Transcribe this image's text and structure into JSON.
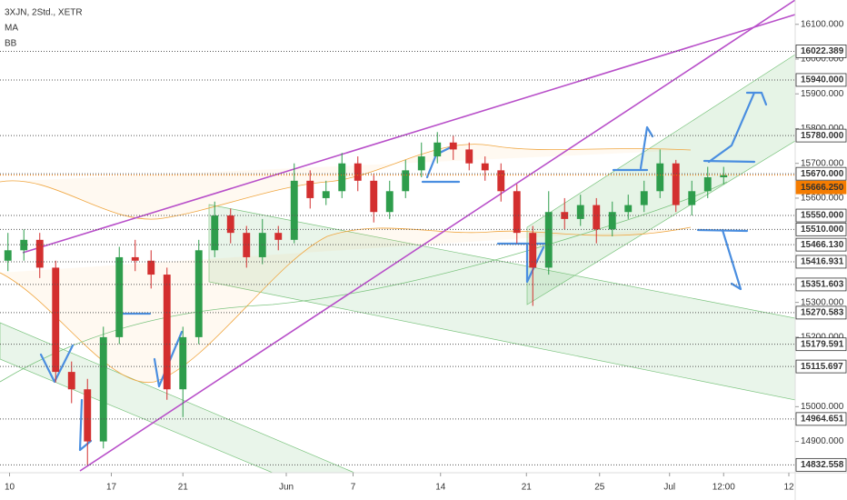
{
  "chart_data": {
    "type": "candlestick",
    "legend_lines": [
      "3XJN, 2Std., XETR",
      "MA",
      "BB"
    ],
    "up_color": "#2e9d4c",
    "down_color": "#d32f2f",
    "ylim": [
      14810,
      16170
    ],
    "yticks": [
      {
        "value": 14900,
        "label": "14900.000"
      },
      {
        "value": 15000,
        "label": "15000.000"
      },
      {
        "value": 15200,
        "label": "15200.000"
      },
      {
        "value": 15300,
        "label": "15300.000"
      },
      {
        "value": 15600,
        "label": "15600.000"
      },
      {
        "value": 15700,
        "label": "15700.000"
      },
      {
        "value": 15800,
        "label": "15800.000"
      },
      {
        "value": 15900,
        "label": "15900.000"
      },
      {
        "value": 16000,
        "label": "16000.000"
      },
      {
        "value": 16100,
        "label": "16100.000"
      }
    ],
    "levels": [
      {
        "value": 16022.389,
        "label": "16022.389"
      },
      {
        "value": 15940,
        "label": "15940.000"
      },
      {
        "value": 15780,
        "label": "15780.000"
      },
      {
        "value": 15670,
        "label": "15670.000"
      },
      {
        "value": 15550,
        "label": "15550.000"
      },
      {
        "value": 15510,
        "label": "15510.000"
      },
      {
        "value": 15466.13,
        "label": "15466.130"
      },
      {
        "value": 15416.931,
        "label": "15416.931"
      },
      {
        "value": 15351.603,
        "label": "15351.603"
      },
      {
        "value": 15270.583,
        "label": "15270.583"
      },
      {
        "value": 15179.591,
        "label": "15179.591"
      },
      {
        "value": 15115.697,
        "label": "15115.697"
      },
      {
        "value": 14964.651,
        "label": "14964.651"
      },
      {
        "value": 14832.558,
        "label": "14832.558"
      }
    ],
    "last_price": {
      "value": 15666.25,
      "label": "15666.250",
      "color": "#f57c00"
    },
    "xlim": [
      0,
      50
    ],
    "xticks": [
      {
        "value": 0.6,
        "label": "10"
      },
      {
        "value": 7,
        "label": "17"
      },
      {
        "value": 11.5,
        "label": "21"
      },
      {
        "value": 18,
        "label": "Jun"
      },
      {
        "value": 22.2,
        "label": "7"
      },
      {
        "value": 27.7,
        "label": "14"
      },
      {
        "value": 33.1,
        "label": "21"
      },
      {
        "value": 37.7,
        "label": "25"
      },
      {
        "value": 42.1,
        "label": "Jul"
      },
      {
        "value": 45.5,
        "label": "12:00"
      },
      {
        "value": 49.6,
        "label": "12"
      }
    ],
    "candles": [
      [
        15420,
        15500,
        15390,
        15450
      ],
      [
        15450,
        15510,
        15420,
        15480
      ],
      [
        15480,
        15500,
        15370,
        15400
      ],
      [
        15400,
        15420,
        15070,
        15100
      ],
      [
        15100,
        15130,
        15010,
        15050
      ],
      [
        15050,
        15080,
        14832,
        14900
      ],
      [
        14900,
        15230,
        14880,
        15200
      ],
      [
        15200,
        15460,
        15180,
        15430
      ],
      [
        15430,
        15480,
        15390,
        15420
      ],
      [
        15420,
        15450,
        15340,
        15380
      ],
      [
        15380,
        15400,
        15020,
        15050
      ],
      [
        15050,
        15230,
        14970,
        15200
      ],
      [
        15200,
        15480,
        15180,
        15450
      ],
      [
        15450,
        15590,
        15430,
        15550
      ],
      [
        15550,
        15570,
        15470,
        15500
      ],
      [
        15500,
        15520,
        15400,
        15430
      ],
      [
        15430,
        15540,
        15410,
        15500
      ],
      [
        15500,
        15520,
        15450,
        15480
      ],
      [
        15480,
        15700,
        15470,
        15650
      ],
      [
        15650,
        15680,
        15570,
        15600
      ],
      [
        15600,
        15650,
        15580,
        15620
      ],
      [
        15620,
        15730,
        15600,
        15700
      ],
      [
        15700,
        15720,
        15620,
        15650
      ],
      [
        15650,
        15670,
        15530,
        15560
      ],
      [
        15560,
        15650,
        15540,
        15620
      ],
      [
        15620,
        15710,
        15600,
        15680
      ],
      [
        15680,
        15760,
        15660,
        15720
      ],
      [
        15720,
        15790,
        15700,
        15760
      ],
      [
        15760,
        15780,
        15710,
        15740
      ],
      [
        15740,
        15760,
        15680,
        15700
      ],
      [
        15700,
        15720,
        15650,
        15680
      ],
      [
        15680,
        15700,
        15590,
        15620
      ],
      [
        15620,
        15640,
        15470,
        15500
      ],
      [
        15500,
        15520,
        15290,
        15400
      ],
      [
        15400,
        15620,
        15380,
        15560
      ],
      [
        15560,
        15600,
        15510,
        15540
      ],
      [
        15540,
        15610,
        15520,
        15580
      ],
      [
        15580,
        15600,
        15470,
        15510
      ],
      [
        15510,
        15590,
        15490,
        15560
      ],
      [
        15560,
        15610,
        15540,
        15580
      ],
      [
        15580,
        15650,
        15560,
        15620
      ],
      [
        15620,
        15740,
        15600,
        15700
      ],
      [
        15700,
        15710,
        15560,
        15580
      ],
      [
        15580,
        15650,
        15550,
        15620
      ],
      [
        15620,
        15690,
        15600,
        15660
      ],
      [
        15660,
        15690,
        15640,
        15666.25
      ]
    ]
  }
}
